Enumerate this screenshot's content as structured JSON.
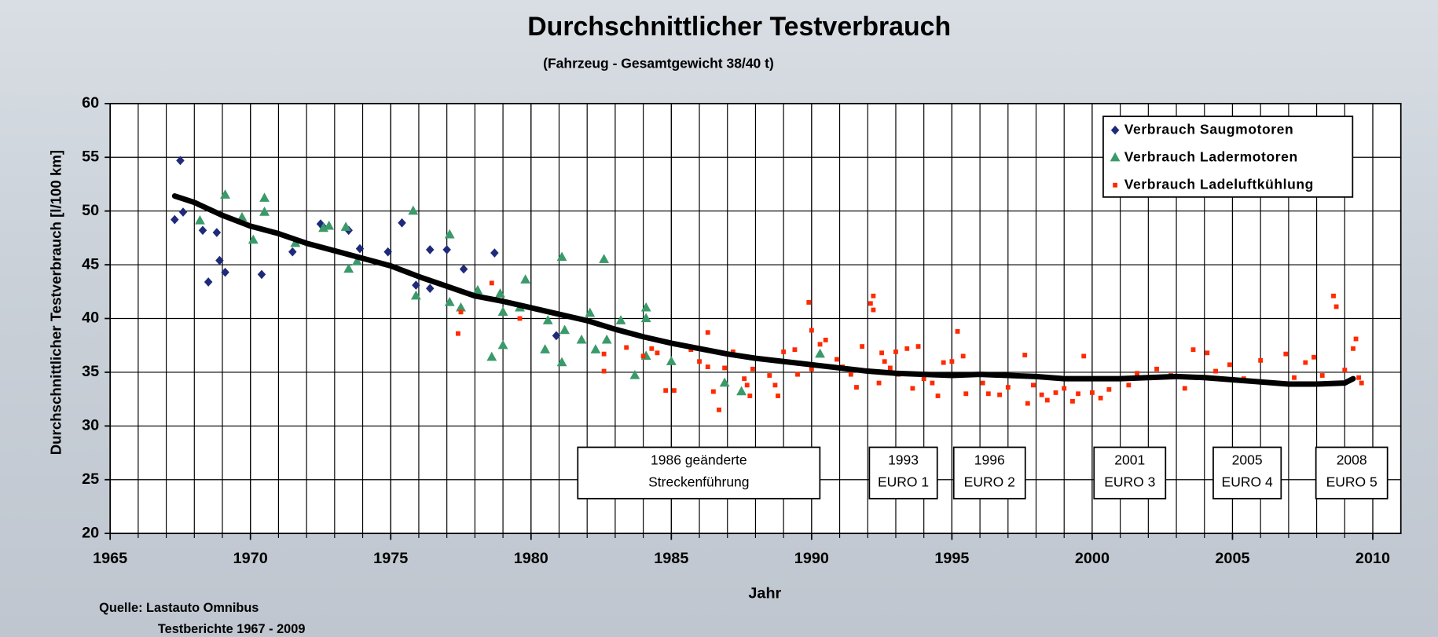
{
  "chart_data": {
    "type": "scatter",
    "title": "Durchschnittlicher Testverbrauch",
    "subtitle": "(Fahrzeug - Gesamtgewicht 38/40 t)",
    "x_label": "Jahr",
    "y_label": "Durchschnittlicher Testverbrauch [l/100 km]",
    "xlim": [
      1965,
      2011
    ],
    "xticks": [
      1965,
      1970,
      1975,
      1980,
      1985,
      1990,
      1995,
      2000,
      2005,
      2010
    ],
    "x_minor_step": 1,
    "ylim": [
      20,
      60
    ],
    "yticks": [
      20,
      25,
      30,
      35,
      40,
      45,
      50,
      55,
      60
    ],
    "grid": true,
    "legend": "upper right",
    "series": [
      {
        "name": "Verbrauch Saugmotoren",
        "color": "#1f2a7a",
        "marker": "diamond",
        "x": [
          1967.3,
          1967.5,
          1967.6,
          1968.3,
          1968.5,
          1968.8,
          1968.9,
          1969.1,
          1970.4,
          1971.5,
          1972.5,
          1972.6,
          1973.5,
          1973.9,
          1974.9,
          1975.4,
          1975.9,
          1976.4,
          1976.4,
          1977.0,
          1977.6,
          1978.7,
          1980.9
        ],
        "values": [
          49.2,
          54.7,
          49.9,
          48.2,
          43.4,
          48.0,
          45.4,
          44.3,
          44.1,
          46.2,
          48.8,
          48.5,
          48.2,
          46.5,
          46.2,
          48.9,
          43.1,
          46.4,
          42.8,
          46.4,
          44.6,
          46.1,
          38.4
        ]
      },
      {
        "name": "Verbrauch Ladermotoren",
        "color": "#3a9a6a",
        "marker": "triangle",
        "x": [
          1968.2,
          1969.1,
          1969.7,
          1970.1,
          1970.5,
          1970.5,
          1971.6,
          1972.6,
          1972.8,
          1973.4,
          1973.5,
          1973.8,
          1975.8,
          1975.9,
          1977.1,
          1977.1,
          1977.5,
          1978.1,
          1978.6,
          1978.9,
          1979.0,
          1979.0,
          1979.6,
          1979.8,
          1980.5,
          1980.6,
          1981.1,
          1981.1,
          1981.2,
          1981.8,
          1982.1,
          1982.3,
          1982.6,
          1982.7,
          1983.2,
          1983.7,
          1984.1,
          1984.1,
          1984.1,
          1985.0,
          1986.9,
          1987.5,
          1990.3
        ],
        "values": [
          49.1,
          51.5,
          49.4,
          47.3,
          51.2,
          49.9,
          47.0,
          48.4,
          48.6,
          48.5,
          44.6,
          45.3,
          50.0,
          42.1,
          47.8,
          41.5,
          41.0,
          42.6,
          36.4,
          42.3,
          37.5,
          40.6,
          41.0,
          43.6,
          37.1,
          39.8,
          35.9,
          45.7,
          38.9,
          38.0,
          40.5,
          37.1,
          45.5,
          38.0,
          39.8,
          34.7,
          41.0,
          40.0,
          36.5,
          36.0,
          34.0,
          33.2,
          36.7
        ]
      },
      {
        "name": "Verbrauch Ladeluftkühlung",
        "color": "#ff2a00",
        "marker": "square",
        "x": [
          1977.4,
          1977.5,
          1978.6,
          1979.6,
          1982.6,
          1982.6,
          1983.4,
          1984.0,
          1984.3,
          1984.5,
          1984.8,
          1985.1,
          1985.2,
          1985.7,
          1986.0,
          1986.3,
          1986.3,
          1986.5,
          1986.7,
          1986.9,
          1987.2,
          1987.6,
          1987.7,
          1987.8,
          1987.9,
          1988.5,
          1988.7,
          1988.8,
          1989.0,
          1989.4,
          1989.5,
          1989.9,
          1990.0,
          1990.0,
          1990.3,
          1990.5,
          1990.9,
          1991.1,
          1991.4,
          1991.6,
          1991.8,
          1992.1,
          1992.2,
          1992.2,
          1992.4,
          1992.5,
          1992.6,
          1992.8,
          1993.0,
          1993.1,
          1993.4,
          1993.6,
          1993.8,
          1994.0,
          1994.3,
          1994.5,
          1994.7,
          1995.0,
          1995.2,
          1995.4,
          1995.5,
          1996.1,
          1996.3,
          1996.7,
          1997.0,
          1997.3,
          1997.6,
          1997.7,
          1997.9,
          1998.2,
          1998.4,
          1998.7,
          1999.0,
          1999.3,
          1999.5,
          1999.7,
          2000.0,
          2000.3,
          2000.6,
          2001.0,
          2001.3,
          2001.6,
          2002.3,
          2002.8,
          2003.3,
          2003.6,
          2004.1,
          2004.4,
          2004.9,
          2005.4,
          2006.0,
          2006.4,
          2006.9,
          2007.2,
          2007.6,
          2007.9,
          2008.2,
          2008.6,
          2008.7,
          2009.0,
          2009.3,
          2009.4,
          2009.5,
          2009.6
        ],
        "values": [
          38.6,
          40.6,
          43.3,
          40.0,
          36.7,
          35.1,
          37.3,
          36.5,
          37.2,
          36.8,
          33.3,
          33.3,
          37.6,
          37.1,
          36.0,
          38.7,
          35.5,
          33.2,
          31.5,
          35.4,
          36.9,
          34.4,
          33.8,
          32.8,
          35.3,
          34.7,
          33.8,
          32.8,
          36.9,
          37.1,
          34.8,
          41.5,
          38.9,
          35.3,
          37.6,
          38.0,
          36.2,
          35.5,
          34.8,
          33.6,
          37.4,
          41.4,
          42.1,
          40.8,
          34.0,
          36.8,
          36.0,
          35.4,
          36.9,
          34.8,
          37.2,
          33.5,
          37.4,
          34.4,
          34.0,
          32.8,
          35.9,
          36.0,
          38.8,
          36.5,
          33.0,
          34.0,
          33.0,
          32.9,
          33.6,
          34.7,
          36.6,
          32.1,
          33.8,
          32.9,
          32.4,
          33.1,
          33.5,
          32.3,
          33.0,
          36.5,
          33.1,
          32.6,
          33.4,
          34.4,
          33.8,
          34.9,
          35.3,
          34.7,
          33.5,
          37.1,
          36.8,
          35.1,
          35.7,
          34.4,
          36.1,
          34.0,
          36.7,
          34.5,
          35.9,
          36.4,
          34.7,
          42.1,
          41.1,
          35.2,
          37.2,
          38.1,
          34.5,
          34.0
        ]
      }
    ],
    "trend": {
      "color": "#000000",
      "x": [
        1967.3,
        1968,
        1969,
        1970,
        1971,
        1972,
        1973,
        1974,
        1975,
        1976,
        1977,
        1978,
        1979,
        1980,
        1981,
        1982,
        1983,
        1984,
        1985,
        1986,
        1987,
        1988,
        1989,
        1990,
        1991,
        1992,
        1993,
        1994,
        1995,
        1996,
        1997,
        1998,
        1999,
        2000,
        2001,
        2002,
        2003,
        2004,
        2005,
        2006,
        2007,
        2008,
        2009,
        2009.3
      ],
      "values": [
        51.4,
        50.8,
        49.6,
        48.6,
        47.9,
        47.0,
        46.3,
        45.6,
        44.9,
        43.9,
        43.0,
        42.1,
        41.6,
        41.0,
        40.4,
        39.8,
        39.0,
        38.3,
        37.7,
        37.2,
        36.7,
        36.3,
        36.0,
        35.7,
        35.4,
        35.1,
        34.9,
        34.8,
        34.7,
        34.8,
        34.7,
        34.6,
        34.4,
        34.4,
        34.4,
        34.5,
        34.6,
        34.5,
        34.3,
        34.1,
        33.9,
        33.9,
        34.0,
        34.4
      ]
    },
    "annotations": [
      [
        "1986 geänderte",
        "Streckenführung"
      ],
      [
        "1993",
        "EURO 1"
      ],
      [
        "1996",
        "EURO 2"
      ],
      [
        "2001",
        "EURO 3"
      ],
      [
        "2005",
        "EURO 4"
      ],
      [
        "2008",
        "EURO 5"
      ]
    ],
    "source": [
      "Quelle: Lastauto Omnibus",
      "Testberichte 1967 - 2009"
    ]
  }
}
